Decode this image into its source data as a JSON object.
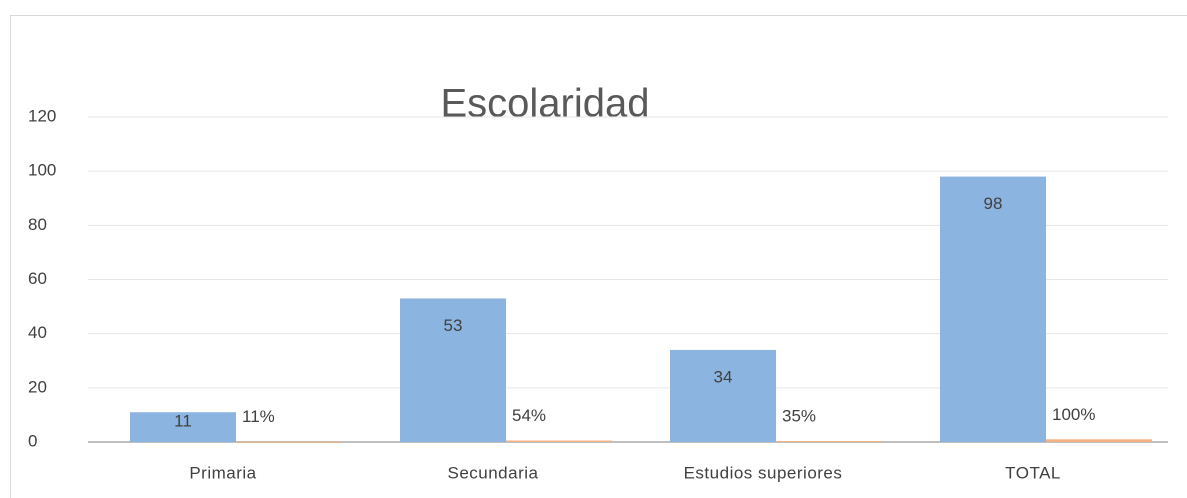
{
  "chart_data": {
    "type": "bar",
    "title": "Escolaridad",
    "categories": [
      "Primaria",
      "Secundaria",
      "Estudios superiores",
      "TOTAL"
    ],
    "series": [
      {
        "color": "#8bb5e0",
        "values": [
          11,
          53,
          34,
          98
        ]
      },
      {
        "color": "#f4b183",
        "values": [
          0.11,
          0.54,
          0.35,
          1.0
        ],
        "value_labels": [
          "11%",
          "54%",
          "35%",
          "100%"
        ]
      }
    ],
    "ylim": [
      0,
      120
    ],
    "yticks": [
      0,
      20,
      40,
      60,
      80,
      100,
      120
    ],
    "grid": true
  }
}
